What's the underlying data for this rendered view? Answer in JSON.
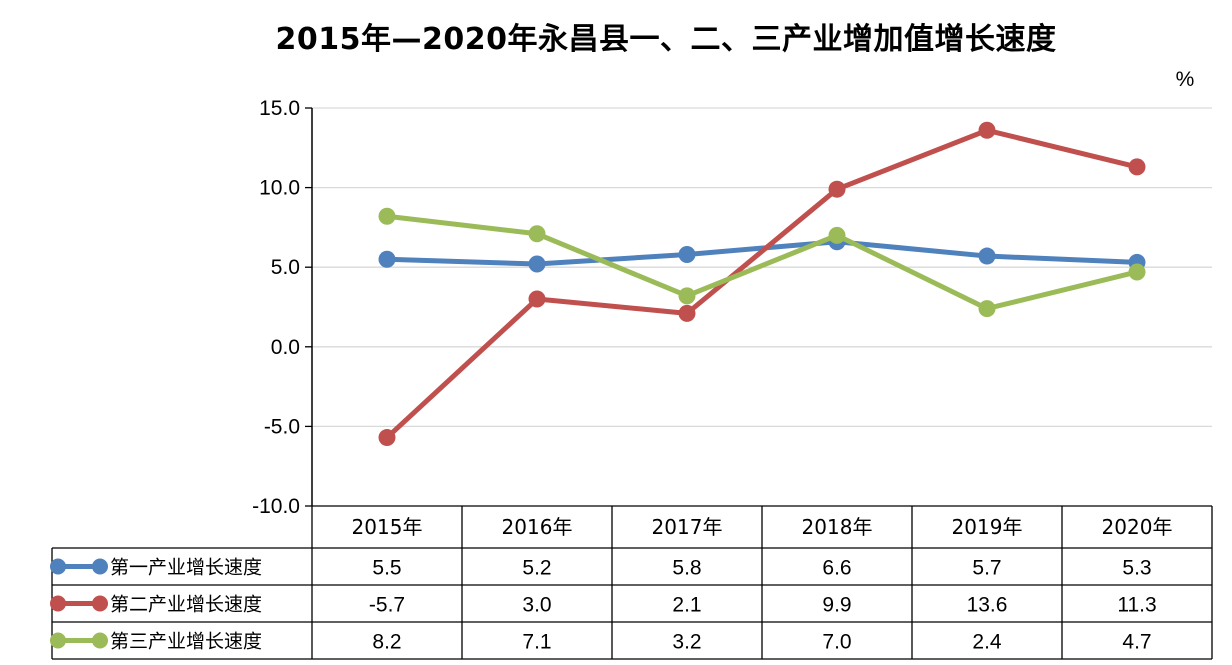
{
  "chart_data": {
    "type": "line",
    "title": "2015年—2020年永昌县一、二、三产业增加值增长速度",
    "unit": "%",
    "categories": [
      "2015年",
      "2016年",
      "2017年",
      "2018年",
      "2019年",
      "2020年"
    ],
    "ylim": [
      -10,
      15
    ],
    "yticks": [
      "15.0",
      "10.0",
      "5.0",
      "0.0",
      "-5.0",
      "-10.0"
    ],
    "grid": true,
    "legend": "data-table",
    "series": [
      {
        "name": "第一产业增长速度",
        "color": "#4f81bd",
        "values": [
          5.5,
          5.2,
          5.8,
          6.6,
          5.7,
          5.3
        ],
        "labels": [
          "5.5",
          "5.2",
          "5.8",
          "6.6",
          "5.7",
          "5.3"
        ]
      },
      {
        "name": "第二产业增长速度",
        "color": "#c0504d",
        "values": [
          -5.7,
          3.0,
          2.1,
          9.9,
          13.6,
          11.3
        ],
        "labels": [
          "-5.7",
          "3.0",
          "2.1",
          "9.9",
          "13.6",
          "11.3"
        ]
      },
      {
        "name": "第三产业增长速度",
        "color": "#9bbb59",
        "values": [
          8.2,
          7.1,
          3.2,
          7.0,
          2.4,
          4.7
        ],
        "labels": [
          "8.2",
          "7.1",
          "3.2",
          "7.0",
          "2.4",
          "4.7"
        ]
      }
    ]
  }
}
